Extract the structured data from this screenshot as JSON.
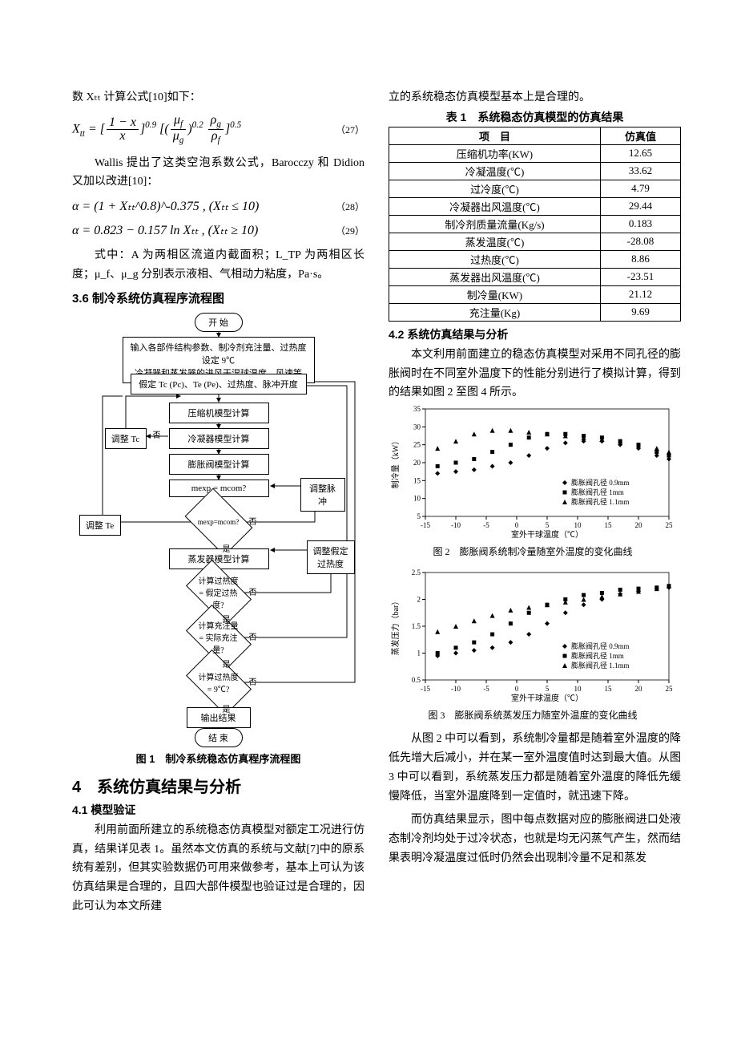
{
  "left": {
    "intro_line": "数 Xₜₜ 计算公式[10]如下：",
    "eq27": {
      "num": 27
    },
    "wallis_para": "Wallis 提出了这类空泡系数公式，Barocczy 和 Didion 又加以改进[10]：",
    "eq28": {
      "text": "α = (1 + Xₜₜ^0.8)^-0.375 , (Xₜₜ ≤ 10)",
      "num": 28
    },
    "eq29": {
      "text": "α = 0.823 − 0.157 ln Xₜₜ , (Xₜₜ ≥ 10)",
      "num": 29
    },
    "vars_para": "式中：A 为两相区流道内截面积；L_TP 为两相区长度；μ_f、μ_g 分别表示液相、气相动力粘度，Pa·s。",
    "sec36": "3.6 制冷系统仿真程序流程图",
    "flow": {
      "start": "开 始",
      "input": "输入各部件结构参数、制冷剂充注量、过热度设定 9℃\n冷凝器和蒸发器的进风干湿球温度、风速等",
      "assume": "假定 Tc (Pc)、Te (Pe)、过热度、脉冲开度",
      "comp": "压缩机模型计算",
      "cond": "冷凝器模型计算",
      "exp": "膨胀阀模型计算",
      "evap": "蒸发器模型计算",
      "d1": "mexp = mcom?",
      "d2": "计算过热度 = 假定过热度?",
      "d3": "计算充注量 = 实际充注量?",
      "d4": "计算过热度 = 9℃?",
      "out": "输出结果",
      "end": "结 束",
      "adj_tc": "调整 Tc",
      "adj_te": "调整 Te",
      "adj_pulse": "调整脉冲",
      "adj_super": "调整假定\n过热度",
      "yes": "是",
      "no": "否"
    },
    "fig1_cap": "图 1　制冷系统稳态仿真程序流程图",
    "sec4": "4　系统仿真结果与分析",
    "sec41": "4.1 模型验证",
    "para41": "利用前面所建立的系统稳态仿真模型对额定工况进行仿真，结果详见表 1。虽然本文仿真的系统与文献[7]中的原系统有差别，但其实验数据仍可用来做参考，基本上可认为该仿真结果是合理的，且四大部件模型也验证过是合理的，因此可认为本文所建"
  },
  "right": {
    "top_line": "立的系统稳态仿真模型基本上是合理的。",
    "tab1_cap": "表 1　系统稳态仿真模型的仿真结果",
    "table": {
      "header": [
        "项　目",
        "仿真值"
      ],
      "rows": [
        [
          "压缩机功率(KW)",
          "12.65"
        ],
        [
          "冷凝温度(℃)",
          "33.62"
        ],
        [
          "过冷度(℃)",
          "4.79"
        ],
        [
          "冷凝器出风温度(℃)",
          "29.44"
        ],
        [
          "制冷剂质量流量(Kg/s)",
          "0.183"
        ],
        [
          "蒸发温度(℃)",
          "-28.08"
        ],
        [
          "过热度(℃)",
          "8.86"
        ],
        [
          "蒸发器出风温度(℃)",
          "-23.51"
        ],
        [
          "制冷量(KW)",
          "21.12"
        ],
        [
          "充注量(Kg)",
          "9.69"
        ]
      ]
    },
    "sec42": "4.2 系统仿真结果与分析",
    "para42": "本文利用前面建立的稳态仿真模型对采用不同孔径的膨胀阀时在不同室外温度下的性能分别进行了模拟计算，得到的结果如图 2 至图 4 所示。",
    "chart2": {
      "type": "scatter",
      "ylabel": "制冷量（kW）",
      "xlabel": "室外干球温度（℃）",
      "xlim": [
        -15,
        25
      ],
      "xtick_step": 5,
      "ylim": [
        5,
        35
      ],
      "ytick_step": 5,
      "bg": "#ffffff",
      "grid": "none",
      "series": [
        {
          "name": "膨胀阀孔径 0.9mm",
          "marker": "diamond",
          "color": "#000000",
          "x": [
            -13,
            -10,
            -7,
            -4,
            -1,
            2,
            5,
            8,
            11,
            14,
            17,
            20,
            23,
            25
          ],
          "y": [
            17,
            17.5,
            18,
            19,
            20,
            22,
            24,
            25.5,
            26,
            26,
            25,
            24,
            22,
            21
          ]
        },
        {
          "name": "膨胀阀孔径 1mm",
          "marker": "square",
          "color": "#000000",
          "x": [
            -13,
            -10,
            -7,
            -4,
            -1,
            2,
            5,
            8,
            11,
            14,
            17,
            20,
            23,
            25
          ],
          "y": [
            19,
            20,
            21,
            23,
            25,
            27,
            28,
            28,
            27.5,
            27,
            26,
            25,
            23,
            22
          ]
        },
        {
          "name": "膨胀阀孔径 1.1mm",
          "marker": "triangle",
          "color": "#000000",
          "x": [
            -13,
            -10,
            -7,
            -4,
            -1,
            2,
            5,
            8,
            11,
            14,
            17,
            20,
            23,
            25
          ],
          "y": [
            24,
            26,
            28,
            29,
            29,
            28.5,
            28,
            27.5,
            27,
            26.5,
            26,
            25,
            24,
            23
          ]
        }
      ],
      "caption": "图 2　膨胀阀系统制冷量随室外温度的变化曲线"
    },
    "chart3": {
      "type": "scatter",
      "ylabel": "蒸发压力（bar）",
      "xlabel": "室外干球温度（℃）",
      "xlim": [
        -15,
        25
      ],
      "xtick_step": 5,
      "ylim": [
        0.5,
        2.5
      ],
      "ytick_step": 0.5,
      "bg": "#ffffff",
      "grid": "none",
      "series": [
        {
          "name": "膨胀阀孔径 0.9mm",
          "marker": "diamond",
          "color": "#000000",
          "x": [
            -13,
            -10,
            -7,
            -4,
            -1,
            2,
            5,
            8,
            11,
            14,
            17,
            20,
            23,
            25
          ],
          "y": [
            0.95,
            1.0,
            1.05,
            1.1,
            1.2,
            1.35,
            1.55,
            1.75,
            1.9,
            2.0,
            2.1,
            2.15,
            2.2,
            2.22
          ]
        },
        {
          "name": "膨胀阀孔径 1mm",
          "marker": "square",
          "color": "#000000",
          "x": [
            -13,
            -10,
            -7,
            -4,
            -1,
            2,
            5,
            8,
            11,
            14,
            17,
            20,
            23,
            25
          ],
          "y": [
            1.0,
            1.1,
            1.2,
            1.35,
            1.55,
            1.75,
            1.9,
            2.0,
            2.08,
            2.12,
            2.18,
            2.2,
            2.22,
            2.25
          ]
        },
        {
          "name": "膨胀阀孔径 1.1mm",
          "marker": "triangle",
          "color": "#000000",
          "x": [
            -13,
            -10,
            -7,
            -4,
            -1,
            2,
            5,
            8,
            11,
            14,
            17,
            20,
            23,
            25
          ],
          "y": [
            1.4,
            1.5,
            1.6,
            1.7,
            1.8,
            1.85,
            1.9,
            1.95,
            2.0,
            2.05,
            2.1,
            2.15,
            2.2,
            2.25
          ]
        }
      ],
      "caption": "图 3　膨胀阀系统蒸发压力随室外温度的变化曲线"
    },
    "para_a": "从图 2 中可以看到，系统制冷量都是随着室外温度的降低先增大后减小，并在某一室外温度值时达到最大值。从图 3 中可以看到，系统蒸发压力都是随着室外温度的降低先缓慢降低，当室外温度降到一定值时，就迅速下降。",
    "para_b": "而仿真结果显示，图中每点数据对应的膨胀阀进口处液态制冷剂均处于过冷状态，也就是均无闪蒸气产生，然而结果表明冷凝温度过低时仍然会出现制冷量不足和蒸发"
  }
}
